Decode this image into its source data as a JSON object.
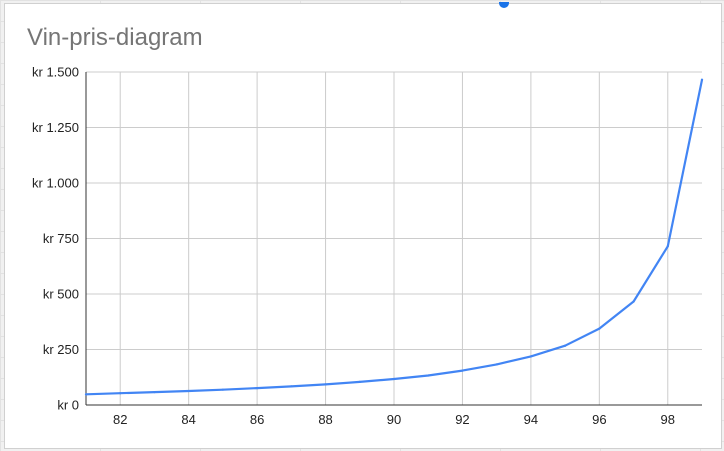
{
  "chart_data": {
    "type": "line",
    "title": "Vin-pris-diagram",
    "xlabel": "",
    "ylabel": "",
    "x": [
      81,
      82,
      83,
      84,
      85,
      86,
      87,
      88,
      89,
      90,
      91,
      92,
      93,
      94,
      95,
      96,
      97,
      98,
      99
    ],
    "series": [
      {
        "values": [
          48,
          53,
          58,
          63,
          69,
          76,
          84,
          93,
          104,
          117,
          133,
          155,
          183,
          219,
          267,
          344,
          466,
          715,
          1465
        ]
      }
    ],
    "xlim": [
      81,
      99
    ],
    "ylim": [
      0,
      1500
    ],
    "x_ticks": [
      82,
      84,
      86,
      88,
      90,
      92,
      94,
      96,
      98
    ],
    "y_ticks": [
      0,
      250,
      500,
      750,
      1000,
      1250,
      1500
    ],
    "y_tick_labels": [
      "kr 0",
      "kr 250",
      "kr 500",
      "kr 750",
      "kr 1.000",
      "kr 1.250",
      "kr 1.500"
    ],
    "grid": true,
    "legend": "none",
    "colors": {
      "line": "#4285f4",
      "grid": "#cccccc",
      "axis": "#333333"
    }
  }
}
